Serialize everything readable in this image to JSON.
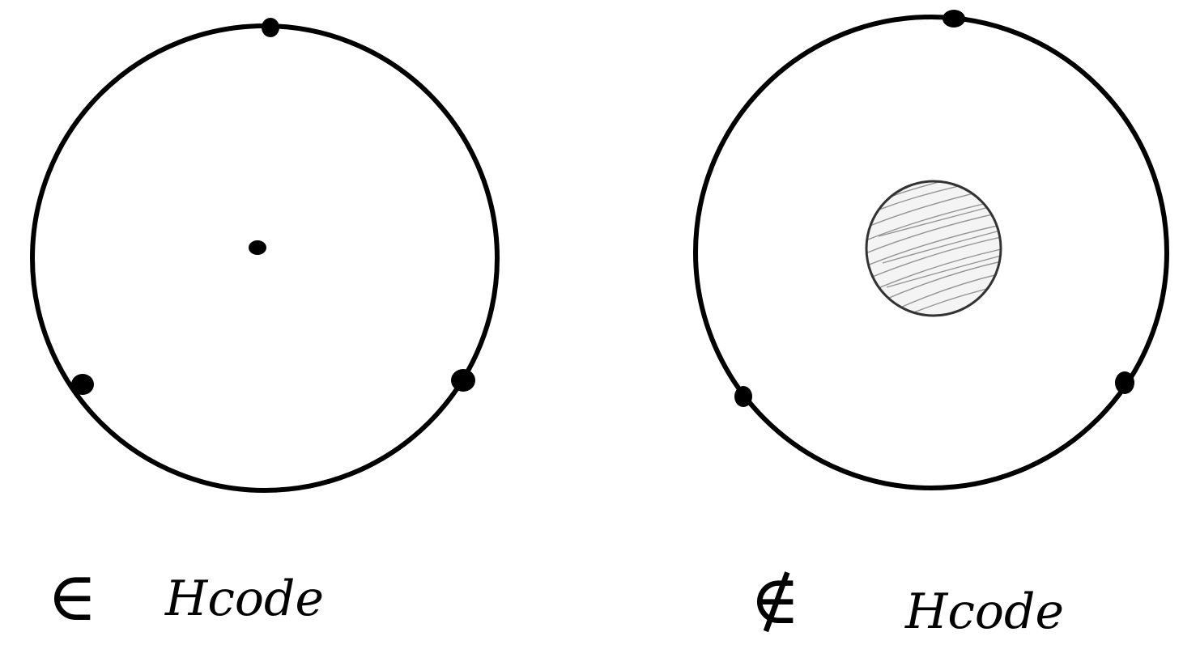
{
  "panels": [
    {
      "id": "left",
      "symbol": "∈",
      "label": "Hcode",
      "inner_shape": "point"
    },
    {
      "id": "right",
      "symbol": "∉",
      "label": "Hcode",
      "inner_shape": "shaded-disc"
    }
  ],
  "colors": {
    "stroke": "#000000",
    "inner_disc_stroke": "#333333",
    "inner_disc_hatch": "#8a8a8a",
    "background": "#ffffff"
  }
}
